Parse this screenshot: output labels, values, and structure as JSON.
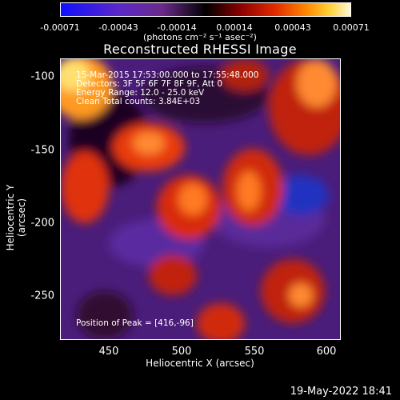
{
  "colorbar": {
    "ticks": [
      "-0.00071",
      "-0.00043",
      "-0.00014",
      "0.00014",
      "0.00043",
      "0.00071"
    ],
    "units": "(photons cm⁻² s⁻¹ asec⁻²)"
  },
  "title": "Reconstructed RHESSI Image",
  "info": {
    "time": "15-Mar-2015 17:53:00.000 to 17:55:48.000",
    "detectors": "Detectors: 3F 5F 6F 7F 8F 9F, Att 0",
    "energy": "Energy Range: 12.0 - 25.0 keV",
    "clean": "Clean     Total counts: 3.84E+03",
    "peak": "Position of Peak = [416,-96]"
  },
  "axes": {
    "xlabel": "Heliocentric X (arcsec)",
    "ylabel": "Heliocentric Y (arcsec)",
    "xticks": [
      "450",
      "500",
      "550",
      "600"
    ],
    "yticks": [
      "-100",
      "-150",
      "-200",
      "-250"
    ]
  },
  "datestamp": "19-May-2022 18:41"
}
